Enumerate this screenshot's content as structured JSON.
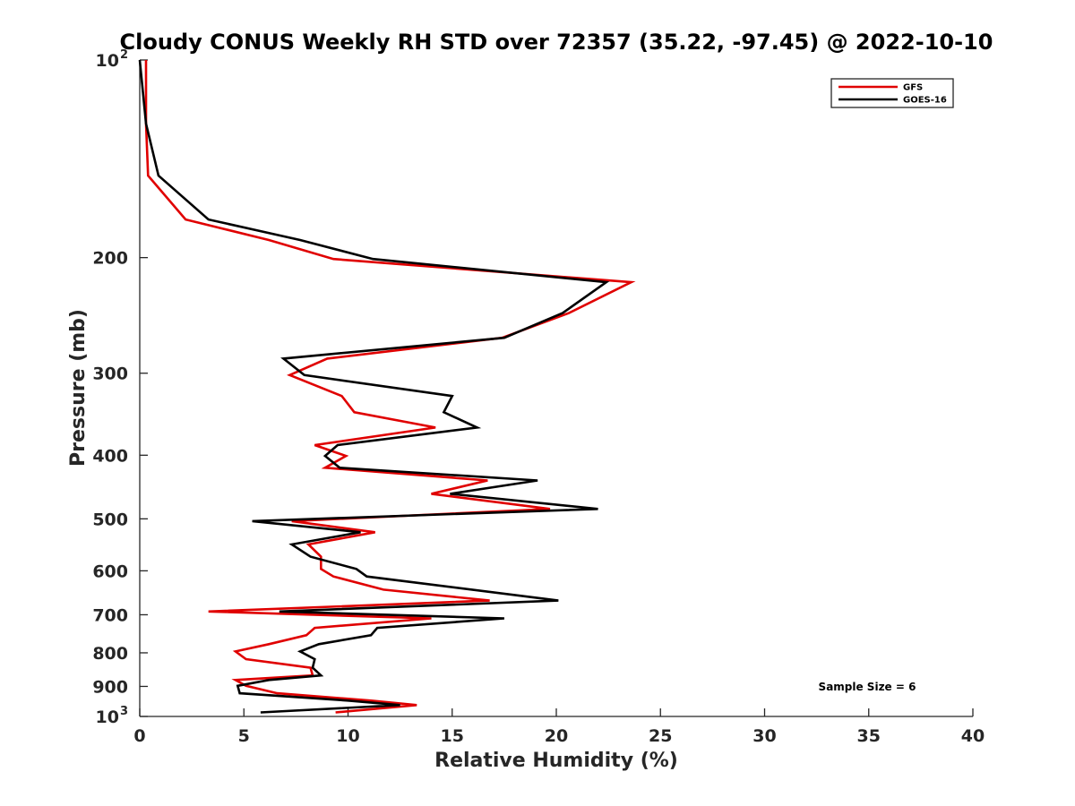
{
  "chart_data": {
    "type": "line",
    "title": "Cloudy CONUS Weekly RH STD over 72357 (35.22, -97.45) @ 2022-10-10",
    "xlabel": "Relative Humidity (%)",
    "ylabel": "Pressure (mb)",
    "xlim": [
      0,
      40
    ],
    "ylim": [
      100,
      1000
    ],
    "y_scale": "log",
    "y_reversed": true,
    "x_ticks": [
      "0",
      "5",
      "10",
      "15",
      "20",
      "25",
      "30",
      "35",
      "40"
    ],
    "y_ticks": [
      {
        "value": 100,
        "label": "10",
        "sup": "2"
      },
      {
        "value": 200,
        "label": "200",
        "sup": ""
      },
      {
        "value": 300,
        "label": "300",
        "sup": ""
      },
      {
        "value": 400,
        "label": "400",
        "sup": ""
      },
      {
        "value": 500,
        "label": "500",
        "sup": ""
      },
      {
        "value": 600,
        "label": "600",
        "sup": ""
      },
      {
        "value": 700,
        "label": "700",
        "sup": ""
      },
      {
        "value": 800,
        "label": "800",
        "sup": ""
      },
      {
        "value": 900,
        "label": "900",
        "sup": ""
      },
      {
        "value": 1000,
        "label": "10",
        "sup": "3"
      }
    ],
    "grid": false,
    "legend_position": "top-right",
    "series": [
      {
        "name": "GFS",
        "color": "#e00000",
        "points": [
          [
            0.3,
            100
          ],
          [
            0.3,
            125
          ],
          [
            0.4,
            150
          ],
          [
            2.2,
            175
          ],
          [
            6.2,
            188
          ],
          [
            9.3,
            201
          ],
          [
            23.6,
            218
          ],
          [
            20.6,
            243
          ],
          [
            17.4,
            265
          ],
          [
            9.0,
            285
          ],
          [
            7.2,
            302
          ],
          [
            9.7,
            325
          ],
          [
            10.3,
            344
          ],
          [
            14.2,
            363
          ],
          [
            8.4,
            386
          ],
          [
            9.9,
            401
          ],
          [
            8.9,
            418
          ],
          [
            16.7,
            437
          ],
          [
            14.0,
            458
          ],
          [
            19.7,
            483
          ],
          [
            7.3,
            504
          ],
          [
            11.3,
            524
          ],
          [
            8.1,
            547
          ],
          [
            8.7,
            571
          ],
          [
            8.7,
            596
          ],
          [
            9.3,
            612
          ],
          [
            11.7,
            641
          ],
          [
            16.8,
            666
          ],
          [
            3.3,
            692
          ],
          [
            14.0,
            709
          ],
          [
            8.4,
            733
          ],
          [
            8.0,
            752
          ],
          [
            6.2,
            776
          ],
          [
            4.6,
            796
          ],
          [
            5.1,
            818
          ],
          [
            8.2,
            843
          ],
          [
            8.3,
            866
          ],
          [
            4.6,
            880
          ],
          [
            5.1,
            898
          ],
          [
            6.6,
            922
          ],
          [
            11.1,
            946
          ],
          [
            13.3,
            961
          ],
          [
            9.4,
            986
          ]
        ]
      },
      {
        "name": "GOES-16",
        "color": "#000000",
        "points": [
          [
            0.0,
            100
          ],
          [
            0.3,
            125
          ],
          [
            0.9,
            150
          ],
          [
            3.3,
            175
          ],
          [
            7.7,
            188
          ],
          [
            11.2,
            201
          ],
          [
            22.4,
            218
          ],
          [
            20.3,
            243
          ],
          [
            17.5,
            265
          ],
          [
            6.9,
            285
          ],
          [
            7.9,
            302
          ],
          [
            15.0,
            325
          ],
          [
            14.6,
            344
          ],
          [
            16.2,
            363
          ],
          [
            9.5,
            386
          ],
          [
            8.9,
            401
          ],
          [
            9.6,
            418
          ],
          [
            19.1,
            437
          ],
          [
            14.9,
            458
          ],
          [
            22.0,
            483
          ],
          [
            5.4,
            504
          ],
          [
            10.6,
            524
          ],
          [
            7.3,
            547
          ],
          [
            8.2,
            571
          ],
          [
            10.4,
            596
          ],
          [
            10.9,
            612
          ],
          [
            20.1,
            666
          ],
          [
            6.7,
            692
          ],
          [
            17.5,
            709
          ],
          [
            11.4,
            733
          ],
          [
            11.1,
            752
          ],
          [
            8.6,
            776
          ],
          [
            7.7,
            796
          ],
          [
            8.4,
            818
          ],
          [
            8.3,
            843
          ],
          [
            8.7,
            866
          ],
          [
            6.2,
            880
          ],
          [
            4.7,
            898
          ],
          [
            4.8,
            922
          ],
          [
            10.0,
            946
          ],
          [
            12.5,
            961
          ],
          [
            5.8,
            986
          ]
        ]
      }
    ],
    "annotations": [
      "Sample Size = 6"
    ]
  }
}
